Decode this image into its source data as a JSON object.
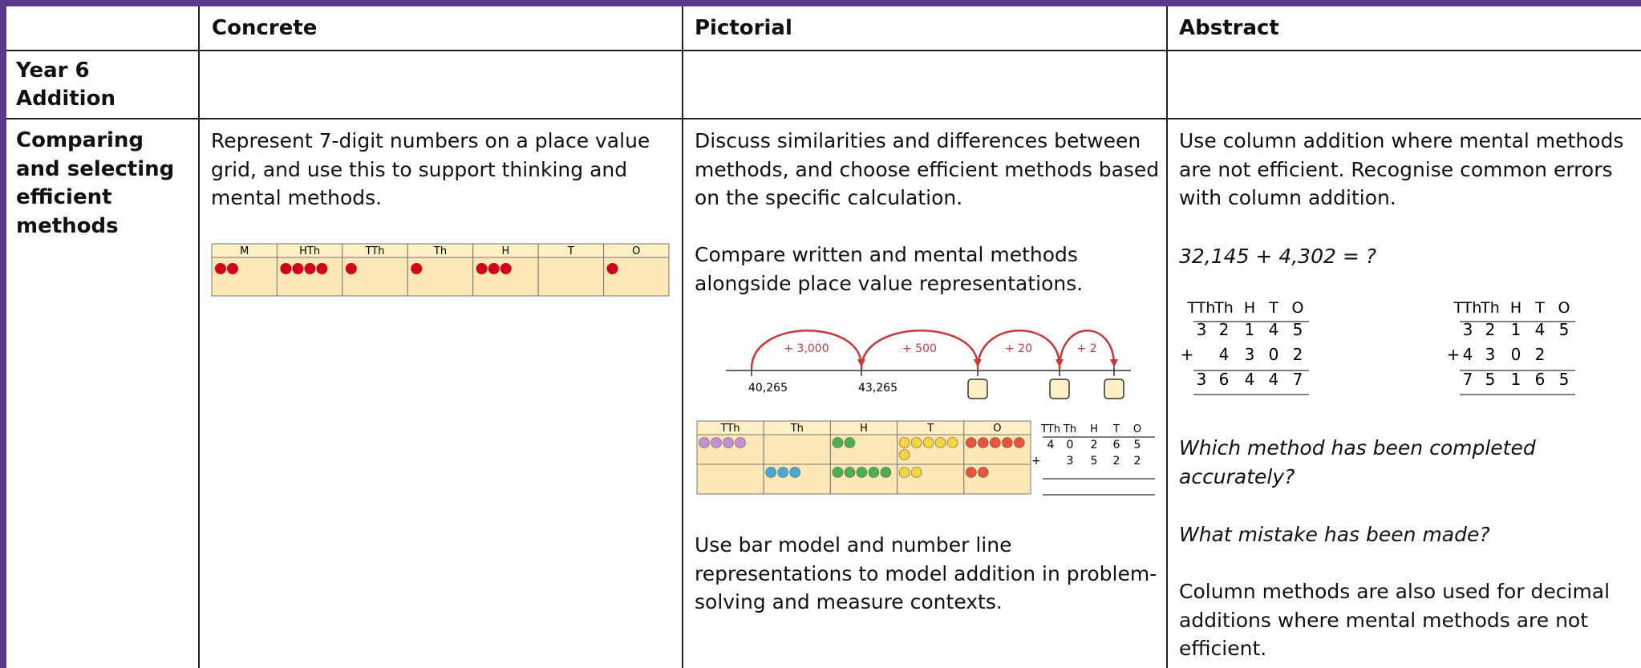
{
  "table": {
    "columns": [
      "Concrete",
      "Pictorial",
      "Abstract"
    ],
    "rows": [
      {
        "label": [
          "Year 6",
          "Addition"
        ]
      },
      {
        "label": "Comparing and selecting efficient methods",
        "concrete": {
          "text": "Represent 7-digit numbers on a place value grid, and use this to support thinking and mental methods.",
          "place_value_grid": {
            "columns": [
              "M",
              "HTh",
              "TTh",
              "Th",
              "H",
              "T",
              "O"
            ],
            "counters": [
              2,
              4,
              1,
              1,
              3,
              0,
              1
            ]
          }
        },
        "pictorial": {
          "text": [
            "Discuss similarities and differences between methods, and choose efficient methods based on the specific calculation.",
            "Compare written and mental methods alongside place value representations."
          ],
          "number_line": {
            "jumps": [
              "+ 3,000",
              "+ 500",
              "+ 20",
              "+ 2"
            ],
            "marks": [
              "40,265",
              "43,265"
            ]
          },
          "place_value_grid": {
            "columns": [
              "TTh",
              "Th",
              "H",
              "T",
              "O"
            ],
            "counters": [
              [
                4,
                0,
                2,
                6,
                5
              ],
              [
                0,
                3,
                5,
                2,
                2
              ]
            ]
          },
          "column_addition": {
            "headers": [
              "TTh",
              "Th",
              "H",
              "T",
              "O"
            ],
            "operator": "+",
            "rows": [
              [
                "4",
                "0",
                "2",
                "6",
                "5"
              ],
              [
                null,
                "3",
                "5",
                "2",
                "2"
              ]
            ]
          },
          "note": "Use bar model and number line representations to model addition in problem-solving and measure contexts."
        },
        "abstract": {
          "text": "Use column addition where mental methods are not efficient. Recognise common errors with column addition.",
          "question": "32,145 + 4,302 = ?",
          "methods": [
            {
              "headers": [
                "TTh",
                "Th",
                "H",
                "T",
                "O"
              ],
              "operator": "+",
              "rows": [
                [
                  "3",
                  "2",
                  "1",
                  "4",
                  "5"
                ],
                [
                  null,
                  "4",
                  "3",
                  "0",
                  "2"
                ],
                [
                  "3",
                  "6",
                  "4",
                  "4",
                  "7"
                ]
              ]
            },
            {
              "headers": [
                "TTh",
                "Th",
                "H",
                "T",
                "O"
              ],
              "operator": "+",
              "rows": [
                [
                  "3",
                  "2",
                  "1",
                  "4",
                  "5"
                ],
                [
                  "4",
                  "3",
                  "0",
                  "2",
                  null
                ],
                [
                  "7",
                  "5",
                  "1",
                  "6",
                  "5"
                ]
              ]
            }
          ],
          "prompts": [
            "Which method has been completed accurately?",
            "What mistake has been made?"
          ],
          "note": "Column methods are also used for decimal additions where mental methods are not efficient."
        }
      }
    ]
  }
}
